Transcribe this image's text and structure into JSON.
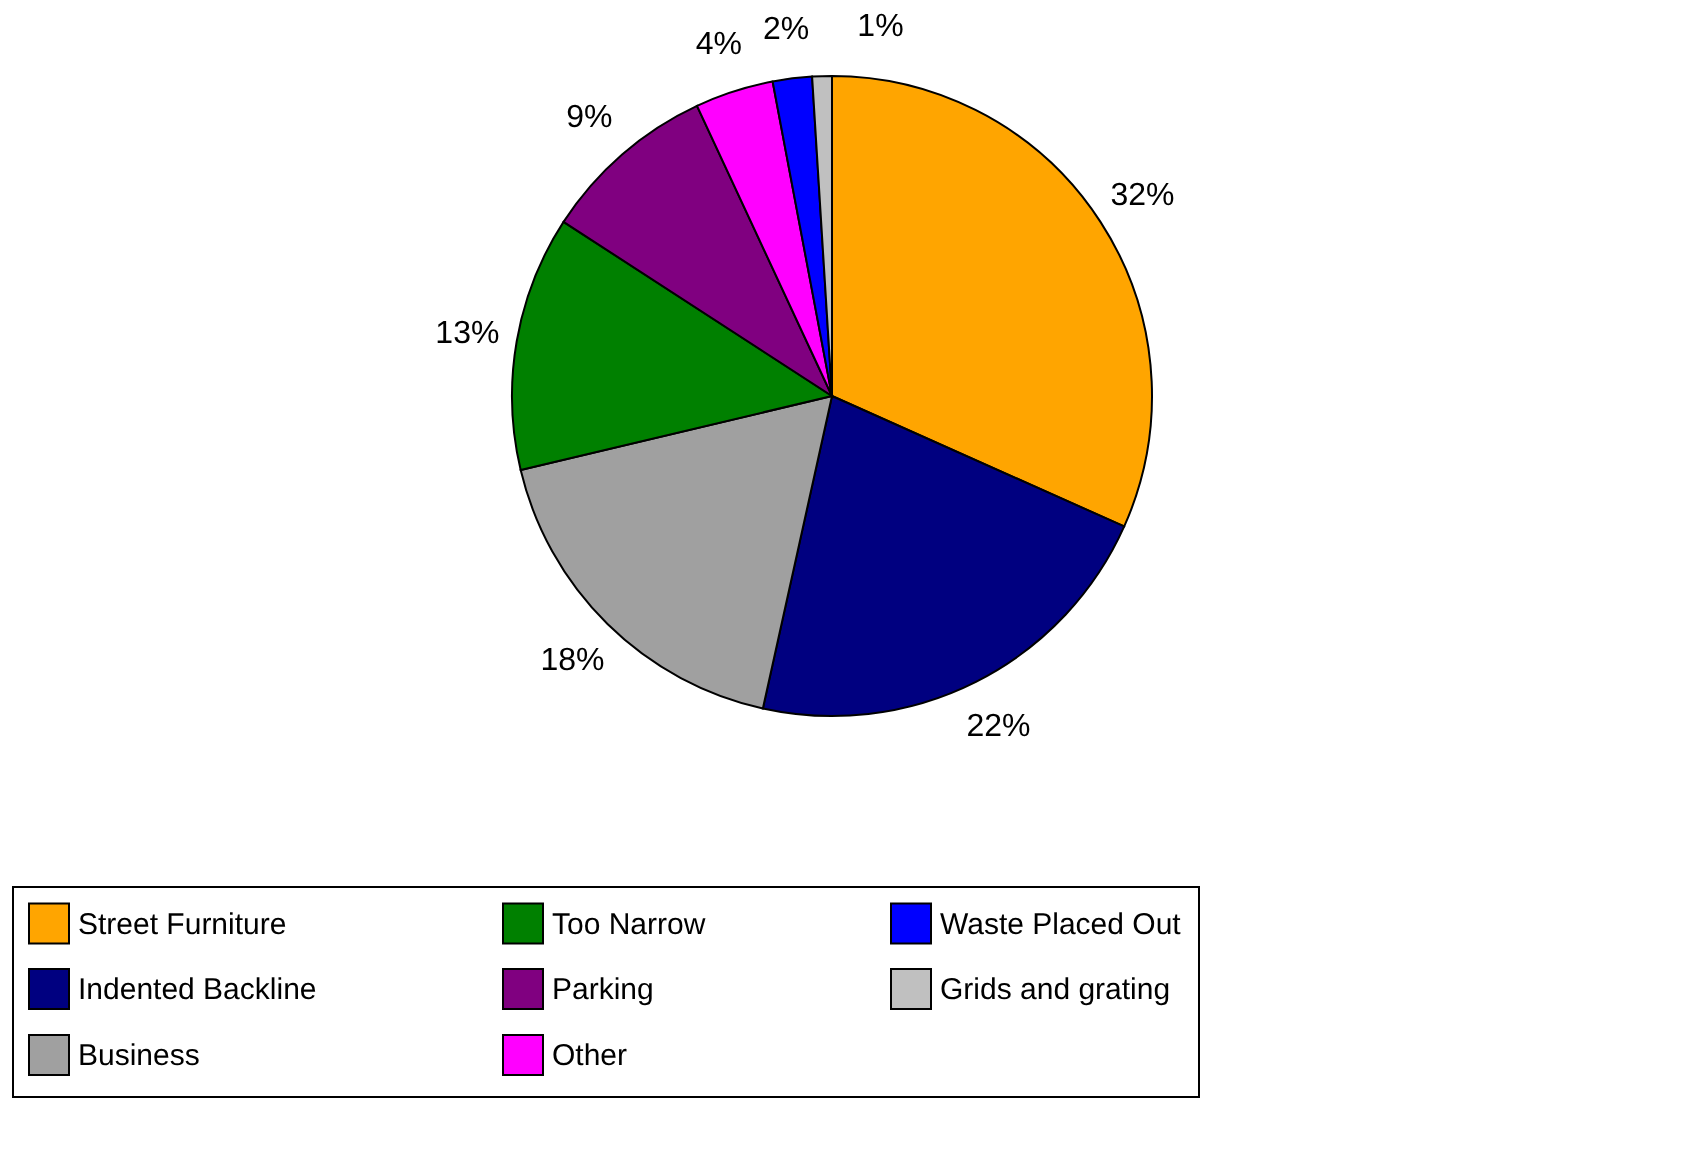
{
  "chart_data": {
    "type": "pie",
    "categories": [
      "Street Furniture",
      "Indented Backline",
      "Business",
      "Too Narrow",
      "Parking",
      "Other",
      "Waste Placed Out",
      "Grids and grating"
    ],
    "values": [
      32,
      22,
      18,
      13,
      9,
      4,
      2,
      1
    ],
    "colors": [
      "#ffa500",
      "#000080",
      "#a0a0a0",
      "#008000",
      "#800080",
      "#ff00ff",
      "#0000ff",
      "#c0c0c0"
    ],
    "value_labels": [
      "32%",
      "22%",
      "18%",
      "13%",
      "9%",
      "4%",
      "2%",
      "1%"
    ],
    "legend": "bottom"
  }
}
